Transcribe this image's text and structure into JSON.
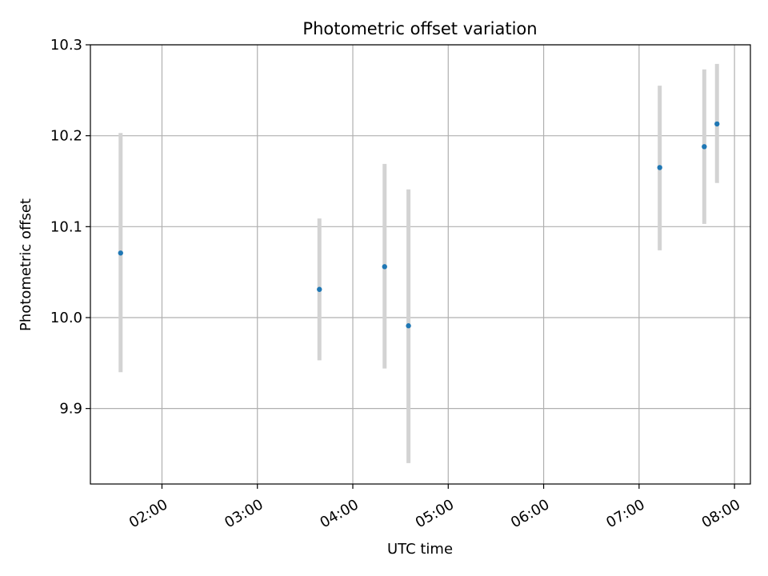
{
  "chart_data": {
    "type": "scatter",
    "title": "Photometric offset variation",
    "xlabel": "UTC time",
    "ylabel": "Photometric offset",
    "x_tick_labels": [
      "02:00",
      "03:00",
      "04:00",
      "05:00",
      "06:00",
      "07:00",
      "08:00"
    ],
    "y_tick_labels": [
      "9.9",
      "10.0",
      "10.1",
      "10.2",
      "10.3"
    ],
    "xlim": [
      "01:15",
      "08:10"
    ],
    "ylim": [
      9.817,
      10.3
    ],
    "grid": true,
    "colors": {
      "point": "#1f77b4",
      "errorbar": "#d3d3d3",
      "grid": "#b0b0b0"
    },
    "points": [
      {
        "time": "01:34",
        "y": 10.071,
        "low": 9.94,
        "high": 10.203
      },
      {
        "time": "03:39",
        "y": 10.031,
        "low": 9.953,
        "high": 10.109
      },
      {
        "time": "04:20",
        "y": 10.056,
        "low": 9.944,
        "high": 10.169
      },
      {
        "time": "04:35",
        "y": 9.991,
        "low": 9.84,
        "high": 10.141
      },
      {
        "time": "07:13",
        "y": 10.165,
        "low": 10.074,
        "high": 10.255
      },
      {
        "time": "07:41",
        "y": 10.188,
        "low": 10.103,
        "high": 10.273
      },
      {
        "time": "07:49",
        "y": 10.213,
        "low": 10.148,
        "high": 10.279
      }
    ]
  }
}
